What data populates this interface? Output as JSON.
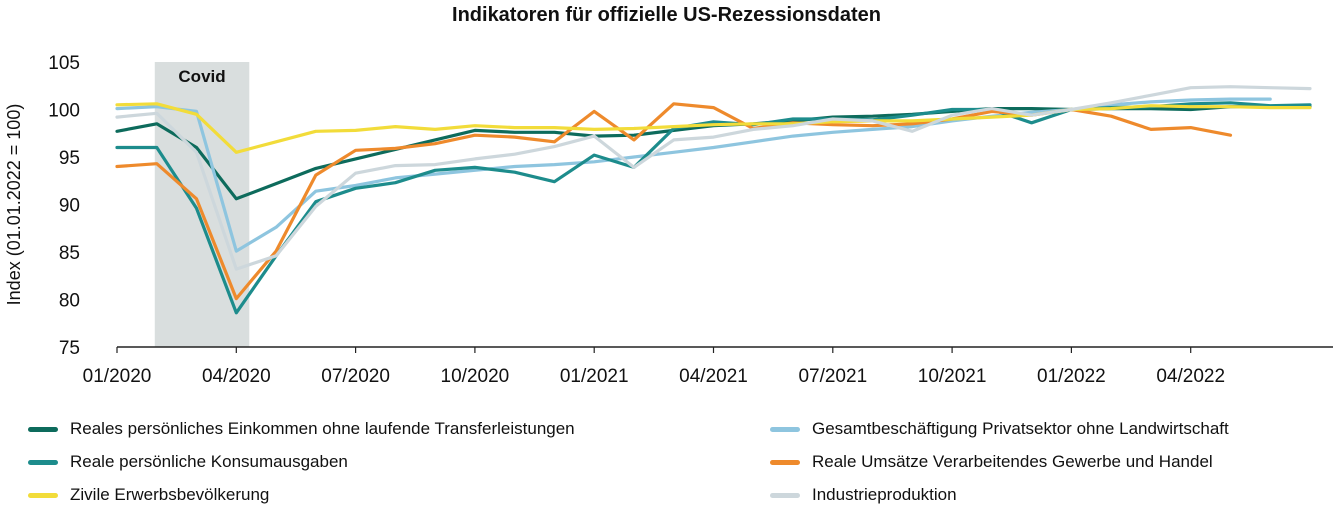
{
  "chart_data": {
    "type": "line",
    "title": "Indikatoren für offizielle US-Rezessionsdaten",
    "xlabel": "",
    "ylabel": "Index (01.01.2022 = 100)",
    "ylim": [
      75,
      105
    ],
    "yticks": [
      75,
      80,
      85,
      90,
      95,
      100,
      105
    ],
    "grid": false,
    "legend_position": "bottom",
    "xlim": [
      "2020-01",
      "2022-07"
    ],
    "xticks": [
      "2020-01",
      "2020-04",
      "2020-07",
      "2020-10",
      "2021-01",
      "2021-04",
      "2021-07",
      "2021-10",
      "2022-01",
      "2022-04"
    ],
    "xtick_labels": [
      "01/2020",
      "04/2020",
      "07/2020",
      "10/2020",
      "01/2021",
      "04/2021",
      "07/2021",
      "10/2021",
      "01/2022",
      "04/2022"
    ],
    "x": [
      "2020-01",
      "2020-02",
      "2020-03",
      "2020-04",
      "2020-05",
      "2020-06",
      "2020-07",
      "2020-08",
      "2020-09",
      "2020-10",
      "2020-11",
      "2020-12",
      "2021-01",
      "2021-02",
      "2021-03",
      "2021-04",
      "2021-05",
      "2021-06",
      "2021-07",
      "2021-08",
      "2021-09",
      "2021-10",
      "2021-11",
      "2021-12",
      "2022-01",
      "2022-02",
      "2022-03",
      "2022-04",
      "2022-05",
      "2022-06",
      "2022-07"
    ],
    "shaded_regions": [
      {
        "label": "Covid",
        "from": "2020-02",
        "to": "2020-04",
        "color": "#d9dede"
      }
    ],
    "series": [
      {
        "name": "Reales persönliches Einkommen ohne laufende Transferleistungen",
        "color": "#0d6b5c",
        "values": [
          97.7,
          98.5,
          96.0,
          90.6,
          92.2,
          93.8,
          94.8,
          95.8,
          96.8,
          97.8,
          97.6,
          97.6,
          97.2,
          97.3,
          97.8,
          98.3,
          98.5,
          98.8,
          99.2,
          99.3,
          99.5,
          99.8,
          100.1,
          100.1,
          100.0,
          100.1,
          100.1,
          100.0,
          100.3,
          100.3,
          100.3
        ]
      },
      {
        "name": "Gesamtbeschäftigung Privatsektor ohne Landwirtschaft",
        "color": "#8ec5df",
        "values": [
          100.1,
          100.3,
          99.8,
          85.1,
          87.6,
          91.4,
          92.0,
          92.8,
          93.2,
          93.6,
          94.0,
          94.2,
          94.5,
          95.0,
          95.5,
          96.0,
          96.6,
          97.2,
          97.6,
          97.9,
          98.2,
          98.8,
          99.3,
          99.7,
          100.0,
          100.5,
          100.8,
          101.0,
          101.1,
          101.1,
          null
        ]
      },
      {
        "name": "Reale persönliche Konsumausgaben",
        "color": "#1d8c8c",
        "values": [
          96.0,
          96.0,
          89.6,
          78.6,
          84.6,
          90.3,
          91.7,
          92.3,
          93.6,
          93.9,
          93.4,
          92.4,
          95.2,
          93.9,
          98.0,
          98.7,
          98.4,
          99.0,
          99.0,
          98.9,
          99.4,
          100.0,
          100.0,
          98.6,
          100.0,
          100.2,
          100.3,
          100.6,
          100.7,
          100.4,
          100.5
        ]
      },
      {
        "name": "Reale Umsätze Verarbeitendes Gewerbe und Handel",
        "color": "#ee8a2c",
        "values": [
          94.0,
          94.3,
          90.6,
          80.1,
          85.1,
          93.1,
          95.7,
          95.9,
          96.4,
          97.3,
          97.1,
          96.6,
          99.8,
          96.8,
          100.6,
          100.2,
          98.0,
          98.6,
          98.4,
          98.3,
          98.5,
          99.0,
          99.8,
          99.4,
          100.0,
          99.3,
          97.9,
          98.1,
          97.3,
          null,
          null
        ]
      },
      {
        "name": "Zivile Erwerbsbevölkerung",
        "color": "#f2dc3a",
        "values": [
          100.5,
          100.6,
          99.5,
          95.5,
          96.6,
          97.7,
          97.8,
          98.2,
          97.9,
          98.3,
          98.1,
          98.1,
          97.9,
          98.0,
          98.2,
          98.4,
          98.5,
          98.5,
          98.7,
          98.8,
          98.8,
          99.0,
          99.2,
          99.4,
          100.0,
          100.1,
          100.4,
          100.3,
          100.3,
          100.2,
          100.2
        ]
      },
      {
        "name": "Industrieproduktion",
        "color": "#cdd7dc",
        "values": [
          99.2,
          99.6,
          95.5,
          83.2,
          84.6,
          89.8,
          93.3,
          94.1,
          94.2,
          94.8,
          95.3,
          96.1,
          97.2,
          93.9,
          96.8,
          97.1,
          97.9,
          98.3,
          99.0,
          98.8,
          97.7,
          99.4,
          100.1,
          99.4,
          100.0,
          100.7,
          101.5,
          102.3,
          102.4,
          102.3,
          102.2
        ]
      }
    ]
  }
}
